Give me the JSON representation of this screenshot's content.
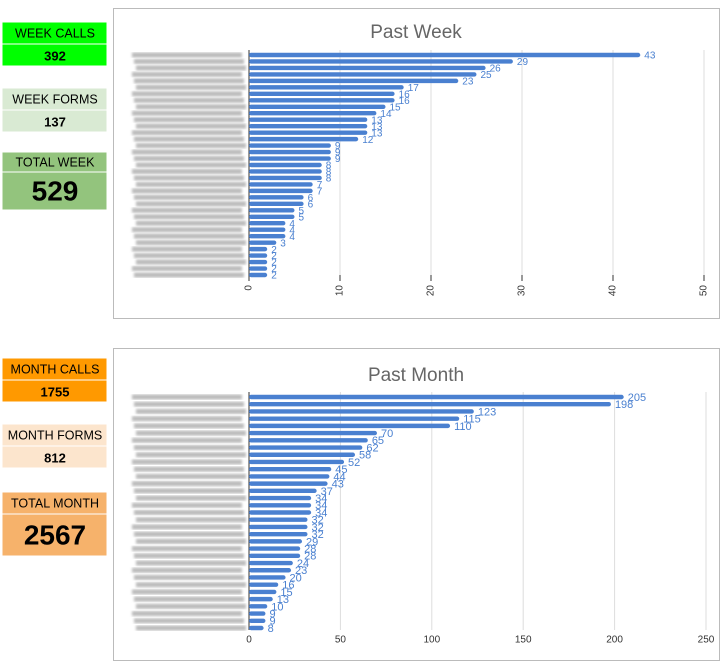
{
  "stats": [
    {
      "label": "WEEK CALLS",
      "value": 392
    },
    {
      "label": "WEEK FORMS",
      "value": 137
    },
    {
      "label": "TOTAL WEEK",
      "value": 529
    },
    {
      "label": "MONTH CALLS",
      "value": 1755
    },
    {
      "label": "MONTH FORMS",
      "value": 812
    },
    {
      "label": "TOTAL MONTH",
      "value": 2567
    }
  ],
  "chart_data": [
    {
      "type": "barh",
      "title": "Past Week",
      "color": "#4a80d0",
      "grid": true,
      "categories": [
        null,
        null,
        null,
        null,
        null,
        null,
        null,
        null,
        null,
        null,
        null,
        null,
        null,
        null,
        null,
        null,
        null,
        null,
        null,
        null,
        null,
        null,
        null,
        null,
        null,
        null,
        null,
        null,
        null,
        null,
        null,
        null,
        null,
        null,
        null
      ],
      "values": [
        43,
        29,
        26,
        25,
        23,
        17,
        16,
        16,
        15,
        14,
        13,
        13,
        13,
        12,
        9,
        9,
        9,
        8,
        8,
        8,
        7,
        7,
        6,
        6,
        5,
        5,
        4,
        4,
        4,
        3,
        2,
        2,
        2,
        2,
        2
      ],
      "xlim": [
        0,
        50
      ],
      "xticks": [
        0,
        10,
        20,
        30,
        40,
        50
      ]
    },
    {
      "type": "barh",
      "title": "Past Month",
      "color": "#4a80d0",
      "grid": true,
      "categories": [
        null,
        null,
        null,
        null,
        null,
        null,
        null,
        null,
        null,
        null,
        null,
        null,
        null,
        null,
        null,
        null,
        null,
        null,
        null,
        null,
        null,
        null,
        null,
        null,
        null,
        null,
        null,
        null,
        null,
        null,
        null,
        null,
        null
      ],
      "values": [
        205,
        198,
        123,
        115,
        110,
        70,
        65,
        62,
        58,
        52,
        45,
        44,
        43,
        37,
        34,
        34,
        34,
        32,
        32,
        32,
        29,
        28,
        28,
        24,
        23,
        20,
        16,
        15,
        13,
        10,
        9,
        9,
        8
      ],
      "xlim": [
        0,
        250
      ],
      "xticks": [
        0,
        50,
        100,
        150,
        200,
        250
      ]
    }
  ]
}
